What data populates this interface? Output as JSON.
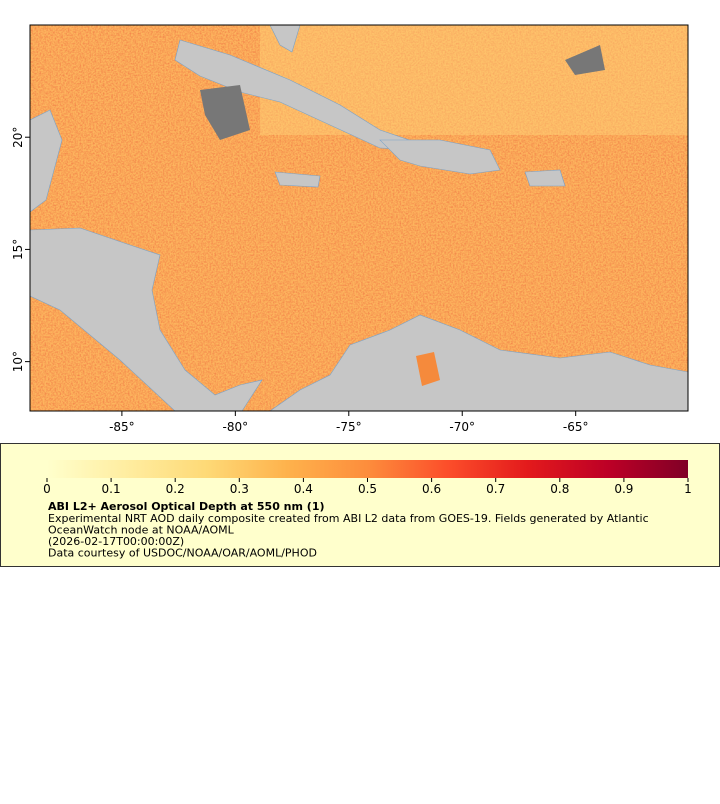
{
  "map": {
    "xlim": [
      -89.05,
      -60.05
    ],
    "ylim": [
      7.8,
      25
    ],
    "xticks": [
      {
        "value": -85,
        "label": "-85°"
      },
      {
        "value": -80,
        "label": "-80°"
      },
      {
        "value": -75,
        "label": "-75°"
      },
      {
        "value": -70,
        "label": "-70°"
      },
      {
        "value": -65,
        "label": "-65°"
      }
    ],
    "yticks": [
      {
        "value": 10,
        "label": "10°"
      },
      {
        "value": 15,
        "label": "15°"
      },
      {
        "value": 20,
        "label": "20°"
      }
    ]
  },
  "colorbar": {
    "lim": [
      0,
      1
    ],
    "ticks": [
      0,
      0.1,
      0.2,
      0.3,
      0.4,
      0.5,
      0.6,
      0.7,
      0.8,
      0.9,
      1
    ],
    "colors": [
      "#ffffcc",
      "#ffeda0",
      "#fed976",
      "#feb24c",
      "#fd8d3c",
      "#fc4e2a",
      "#e31a1c",
      "#bd0026",
      "#800026"
    ]
  },
  "caption": {
    "title": "ABI L2+ Aerosol Optical Depth at 550 nm (1)",
    "lines": [
      "Experimental NRT AOD daily composite created from ABI L2 data from GOES-19. Fields generated by Atlantic",
      "OceanWatch node at NOAA/AOML",
      "(2026-02-17T00:00:00Z)",
      "Data courtesy of USDOC/NOAA/OAR/AOML/PHOD"
    ]
  }
}
